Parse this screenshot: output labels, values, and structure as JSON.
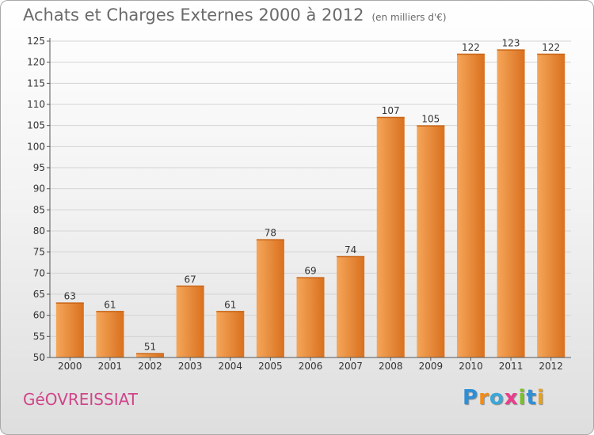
{
  "title": "Achats et Charges Externes 2000 à 2012",
  "title_unit": "(en milliers d'€)",
  "commune": "GéOVREISSIAT",
  "logo": "Proxiti",
  "chart_data": {
    "type": "bar",
    "categories": [
      "2000",
      "2001",
      "2002",
      "2003",
      "2004",
      "2005",
      "2006",
      "2007",
      "2008",
      "2009",
      "2010",
      "2011",
      "2012"
    ],
    "values": [
      63,
      61,
      51,
      67,
      61,
      78,
      69,
      74,
      107,
      105,
      122,
      123,
      122
    ],
    "ylim": [
      50,
      125
    ],
    "yticks": [
      50,
      55,
      60,
      65,
      70,
      75,
      80,
      85,
      90,
      95,
      100,
      105,
      110,
      115,
      120,
      125
    ],
    "grid": true,
    "colors": {
      "bar_light": "#f5a65a",
      "bar_dark": "#d9701e",
      "bar_top": "#c96516",
      "axis": "#555555",
      "grid": "#d4d4d4"
    }
  }
}
